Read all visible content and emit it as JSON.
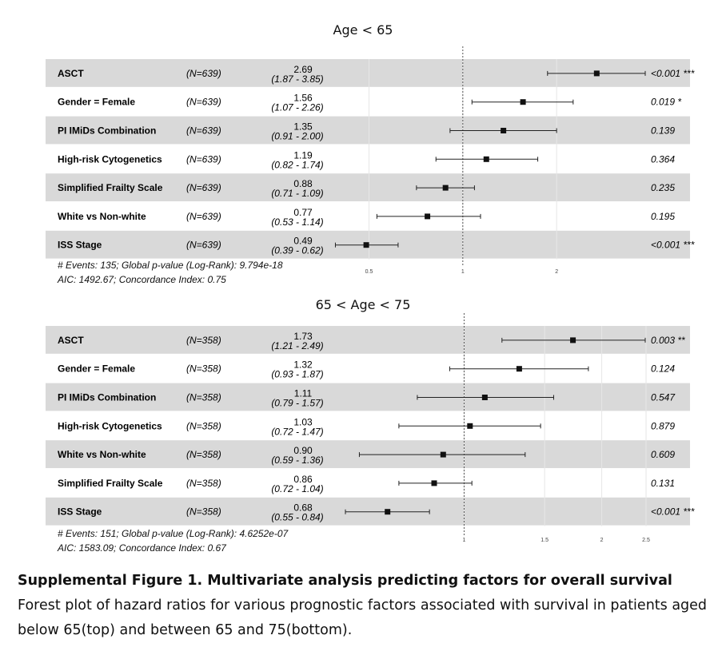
{
  "chart_data": [
    {
      "type": "forest",
      "title": "Age < 65",
      "xscale": "log",
      "ticks": [
        0.5,
        1,
        2
      ],
      "tick_labels": [
        "0.5",
        "1",
        "2"
      ],
      "xlim": [
        0.42,
        3.85
      ],
      "reference": 1,
      "rows": [
        {
          "variable": "ASCT",
          "n": "(N=639)",
          "hr": 2.69,
          "lo": 1.87,
          "hi": 3.85,
          "hr_text": "2.69",
          "ci_text": "(1.87 - 3.85)",
          "p_text": "<0.001 ***"
        },
        {
          "variable": "Gender = Female",
          "n": "(N=639)",
          "hr": 1.56,
          "lo": 1.07,
          "hi": 2.26,
          "hr_text": "1.56",
          "ci_text": "(1.07 - 2.26)",
          "p_text": "0.019 *"
        },
        {
          "variable": "PI IMiDs Combination",
          "n": "(N=639)",
          "hr": 1.35,
          "lo": 0.91,
          "hi": 2.0,
          "hr_text": "1.35",
          "ci_text": "(0.91 - 2.00)",
          "p_text": "0.139"
        },
        {
          "variable": "High-risk Cytogenetics",
          "n": "(N=639)",
          "hr": 1.19,
          "lo": 0.82,
          "hi": 1.74,
          "hr_text": "1.19",
          "ci_text": "(0.82 - 1.74)",
          "p_text": "0.364"
        },
        {
          "variable": "Simplified Frailty Scale",
          "n": "(N=639)",
          "hr": 0.88,
          "lo": 0.71,
          "hi": 1.09,
          "hr_text": "0.88",
          "ci_text": "(0.71 - 1.09)",
          "p_text": "0.235"
        },
        {
          "variable": "White vs Non-white",
          "n": "(N=639)",
          "hr": 0.77,
          "lo": 0.53,
          "hi": 1.14,
          "hr_text": "0.77",
          "ci_text": "(0.53 - 1.14)",
          "p_text": "0.195"
        },
        {
          "variable": "ISS Stage",
          "n": "(N=639)",
          "hr": 0.49,
          "lo": 0.39,
          "hi": 0.62,
          "hr_text": "0.49",
          "ci_text": "(0.39 - 0.62)",
          "p_text": "<0.001 ***"
        }
      ],
      "footer_line1": "# Events: 135; Global p-value (Log-Rank): 9.794e-18",
      "footer_line2": "AIC: 1492.67; Concordance Index: 0.75"
    },
    {
      "type": "forest",
      "title": "65 < Age < 75",
      "xscale": "log",
      "ticks": [
        1,
        1.5,
        2,
        2.5
      ],
      "tick_labels": [
        "1",
        "1.5",
        "2",
        "2.5"
      ],
      "xlim": [
        0.55,
        2.49
      ],
      "reference": 1,
      "rows": [
        {
          "variable": "ASCT",
          "n": "(N=358)",
          "hr": 1.73,
          "lo": 1.21,
          "hi": 2.49,
          "hr_text": "1.73",
          "ci_text": "(1.21 - 2.49)",
          "p_text": "0.003 **"
        },
        {
          "variable": "Gender = Female",
          "n": "(N=358)",
          "hr": 1.32,
          "lo": 0.93,
          "hi": 1.87,
          "hr_text": "1.32",
          "ci_text": "(0.93 - 1.87)",
          "p_text": "0.124"
        },
        {
          "variable": "PI IMiDs Combination",
          "n": "(N=358)",
          "hr": 1.11,
          "lo": 0.79,
          "hi": 1.57,
          "hr_text": "1.11",
          "ci_text": "(0.79 - 1.57)",
          "p_text": "0.547"
        },
        {
          "variable": "High-risk Cytogenetics",
          "n": "(N=358)",
          "hr": 1.03,
          "lo": 0.72,
          "hi": 1.47,
          "hr_text": "1.03",
          "ci_text": "(0.72 - 1.47)",
          "p_text": "0.879"
        },
        {
          "variable": "White vs Non-white",
          "n": "(N=358)",
          "hr": 0.9,
          "lo": 0.59,
          "hi": 1.36,
          "hr_text": "0.90",
          "ci_text": "(0.59 - 1.36)",
          "p_text": "0.609"
        },
        {
          "variable": "Simplified Frailty Scale",
          "n": "(N=358)",
          "hr": 0.86,
          "lo": 0.72,
          "hi": 1.04,
          "hr_text": "0.86",
          "ci_text": "(0.72 - 1.04)",
          "p_text": "0.131"
        },
        {
          "variable": "ISS Stage",
          "n": "(N=358)",
          "hr": 0.68,
          "lo": 0.55,
          "hi": 0.84,
          "hr_text": "0.68",
          "ci_text": "(0.55 - 0.84)",
          "p_text": "<0.001 ***"
        }
      ],
      "footer_line1": "# Events: 151; Global p-value (Log-Rank): 4.6252e-07",
      "footer_line2": "AIC: 1583.09; Concordance Index: 0.67"
    }
  ],
  "caption": {
    "title": "Supplemental Figure 1. Multivariate analysis predicting factors for overall survival",
    "body": "Forest plot of hazard ratios for various prognostic factors associated with survival in patients aged below 65(top) and between 65 and 75(bottom)."
  }
}
